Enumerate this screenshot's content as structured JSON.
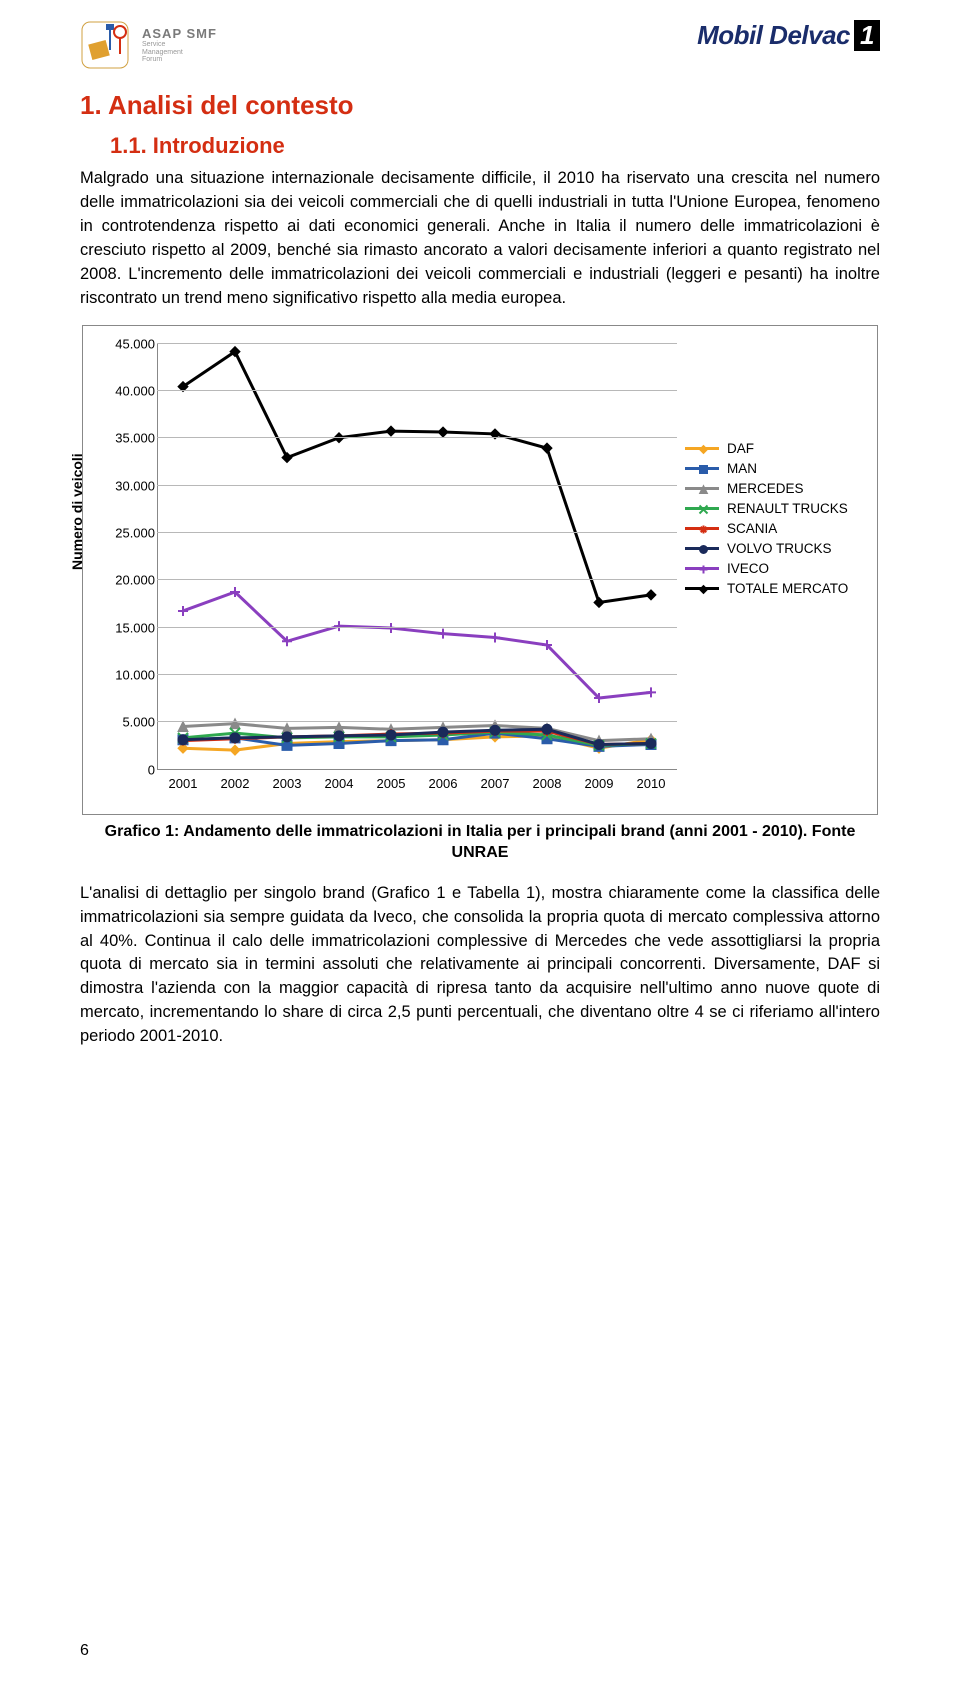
{
  "logos": {
    "left_main": "ASAP SMF",
    "left_sub": "Service\nManagement\nForum",
    "right_mobil": "Mobil",
    "right_delvac": " Delvac",
    "right_one": "1"
  },
  "headings": {
    "h1": "1. Analisi del contesto",
    "h2": "1.1. Introduzione"
  },
  "para1": "Malgrado una situazione internazionale decisamente difficile, il 2010 ha riservato una crescita nel numero delle immatricolazioni sia dei veicoli commerciali che di quelli industriali in tutta l'Unione Europea, fenomeno in controtendenza rispetto ai dati economici generali. Anche in Italia il numero delle immatricolazioni è cresciuto rispetto al 2009, benché sia rimasto ancorato a valori decisamente inferiori a quanto registrato nel 2008. L'incremento delle immatricolazioni dei veicoli commerciali e industriali (leggeri e pesanti) ha inoltre riscontrato un trend meno significativo rispetto alla media europea.",
  "chart": {
    "type": "line",
    "ylabel": "Numero di veicoli",
    "ylim": [
      0,
      45000
    ],
    "ytick_step": 5000,
    "yticks": [
      "0",
      "5.000",
      "10.000",
      "15.000",
      "20.000",
      "25.000",
      "30.000",
      "35.000",
      "40.000",
      "45.000"
    ],
    "years": [
      "2001",
      "2002",
      "2003",
      "2004",
      "2005",
      "2006",
      "2007",
      "2008",
      "2009",
      "2010"
    ],
    "grid_color": "#b8b8b8",
    "background": "#ffffff",
    "line_width": 3,
    "marker_size": 5,
    "series": [
      {
        "name": "DAF",
        "color": "#f5a623",
        "marker": "diamond",
        "values": [
          2300,
          2100,
          2800,
          3000,
          3100,
          3200,
          3500,
          3600,
          2300,
          3200
        ]
      },
      {
        "name": "MAN",
        "color": "#2a5caa",
        "marker": "square",
        "values": [
          3200,
          3400,
          2600,
          2800,
          3100,
          3200,
          3900,
          3300,
          2500,
          2700
        ]
      },
      {
        "name": "MERCEDES",
        "color": "#8a8a8a",
        "marker": "triangle",
        "values": [
          4600,
          4900,
          4400,
          4500,
          4300,
          4500,
          4700,
          4400,
          3100,
          3300
        ]
      },
      {
        "name": "RENAULT TRUCKS",
        "color": "#2fa84f",
        "marker": "x",
        "values": [
          3400,
          3900,
          3400,
          3500,
          3500,
          3700,
          4000,
          3700,
          2600,
          2800
        ]
      },
      {
        "name": "SCANIA",
        "color": "#d42e12",
        "marker": "star",
        "values": [
          3100,
          3300,
          3500,
          3600,
          3800,
          3900,
          4100,
          4100,
          2700,
          2800
        ]
      },
      {
        "name": "VOLVO TRUCKS",
        "color": "#1a2a5a",
        "marker": "circle",
        "values": [
          3200,
          3400,
          3500,
          3600,
          3700,
          4000,
          4200,
          4300,
          2700,
          2800
        ]
      },
      {
        "name": "IVECO",
        "color": "#8a3fbf",
        "marker": "plus",
        "values": [
          16800,
          18800,
          13600,
          15200,
          15000,
          14400,
          14000,
          13200,
          7600,
          8200
        ]
      },
      {
        "name": "TOTALE MERCATO",
        "color": "#000000",
        "marker": "diamond",
        "values": [
          40500,
          44200,
          33000,
          35100,
          35800,
          35700,
          35500,
          34000,
          17700,
          18500
        ]
      }
    ]
  },
  "caption": "Grafico 1: Andamento delle immatricolazioni in Italia per i principali brand (anni 2001 - 2010). Fonte UNRAE",
  "para2": "L'analisi di dettaglio per singolo brand (Grafico 1 e Tabella 1), mostra chiaramente come la classifica delle immatricolazioni sia sempre guidata da Iveco, che consolida la propria quota di mercato complessiva attorno al 40%. Continua il calo delle immatricolazioni complessive di Mercedes che vede assottigliarsi la propria quota di mercato sia in termini assoluti che relativamente ai principali concorrenti. Diversamente, DAF si dimostra l'azienda con la maggior capacità di ripresa tanto da acquisire nell'ultimo anno nuove quote di mercato, incrementando lo share di circa 2,5 punti percentuali, che diventano oltre 4 se ci riferiamo all'intero periodo 2001-2010.",
  "page_number": "6"
}
